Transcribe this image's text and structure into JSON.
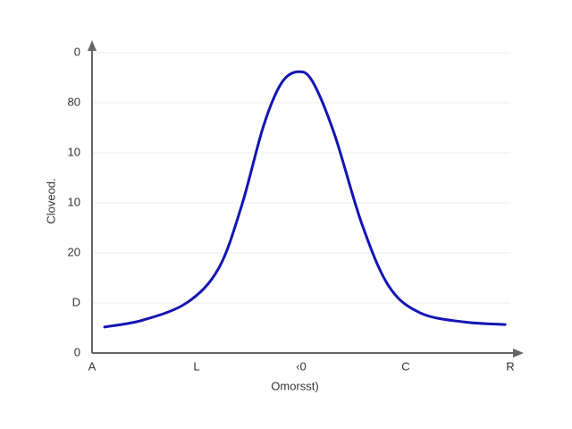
{
  "chart_data": {
    "type": "line",
    "y_label": "Cloveod.",
    "x_label": "Omorsst)",
    "xlim": [
      0,
      4
    ],
    "xticks": [
      {
        "value": 0,
        "label": "A"
      },
      {
        "value": 1,
        "label": "L"
      },
      {
        "value": 2,
        "label": "‹0"
      },
      {
        "value": 3,
        "label": "C"
      },
      {
        "value": 4,
        "label": "R"
      }
    ],
    "ylim": [
      0,
      6
    ],
    "yticks": [
      {
        "value": 0,
        "label": "0"
      },
      {
        "value": 1,
        "label": "D"
      },
      {
        "value": 2,
        "label": "20"
      },
      {
        "value": 3,
        "label": "10"
      },
      {
        "value": 4,
        "label": "10"
      },
      {
        "value": 5,
        "label": "80"
      },
      {
        "value": 6,
        "label": "0"
      }
    ],
    "grid": true,
    "series": [
      {
        "color": "#1414b4",
        "x": [
          0.12,
          0.49,
          0.91,
          1.21,
          1.43,
          1.64,
          1.81,
          1.97,
          2.11,
          2.32,
          2.58,
          2.84,
          3.14,
          3.56,
          3.95
        ],
        "values": [
          0.52,
          0.66,
          1.01,
          1.69,
          2.94,
          4.54,
          5.39,
          5.62,
          5.42,
          4.36,
          2.58,
          1.33,
          0.8,
          0.62,
          0.57
        ]
      }
    ]
  }
}
